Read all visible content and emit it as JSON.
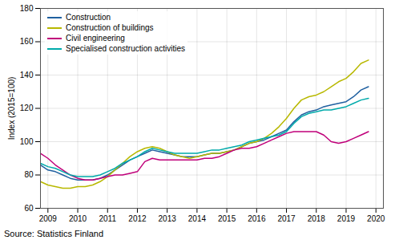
{
  "chart_data": {
    "type": "line",
    "ylabel": "Index (2015=100)",
    "source": "Source: Statistics Finland",
    "xlim": [
      2008.75,
      2020.25
    ],
    "ylim": [
      60,
      180
    ],
    "xticks": [
      2009,
      2010,
      2011,
      2012,
      2013,
      2014,
      2015,
      2016,
      2017,
      2018,
      2019,
      2020
    ],
    "yticks": [
      60,
      80,
      100,
      120,
      140,
      160,
      180
    ],
    "grid": true,
    "legend": "upper left",
    "x": [
      2008.75,
      2009.0,
      2009.25,
      2009.5,
      2009.75,
      2010.0,
      2010.25,
      2010.5,
      2010.75,
      2011.0,
      2011.25,
      2011.5,
      2011.75,
      2012.0,
      2012.25,
      2012.5,
      2012.75,
      2013.0,
      2013.25,
      2013.5,
      2013.75,
      2014.0,
      2014.25,
      2014.5,
      2014.75,
      2015.0,
      2015.25,
      2015.5,
      2015.75,
      2016.0,
      2016.25,
      2016.5,
      2016.75,
      2017.0,
      2017.25,
      2017.5,
      2017.75,
      2018.0,
      2018.25,
      2018.5,
      2018.75,
      2019.0,
      2019.25,
      2019.5,
      2019.75
    ],
    "series": [
      {
        "name": "Construction",
        "color": "#2060A0",
        "values": [
          86,
          83,
          82,
          80,
          78,
          77,
          77,
          77,
          78,
          80,
          83,
          86,
          89,
          91,
          93,
          95,
          94,
          93,
          92,
          91,
          91,
          91,
          92,
          93,
          93,
          94,
          95,
          97,
          99,
          100,
          101,
          103,
          105,
          107,
          112,
          116,
          118,
          119,
          121,
          122,
          123,
          124,
          127,
          131,
          133
        ]
      },
      {
        "name": "Construction of buildings",
        "color": "#B8B800",
        "values": [
          76,
          74,
          73,
          72,
          72,
          73,
          73,
          74,
          76,
          79,
          83,
          87,
          91,
          94,
          96,
          97,
          96,
          94,
          92,
          91,
          90,
          91,
          92,
          93,
          93,
          94,
          95,
          97,
          99,
          100,
          102,
          105,
          109,
          114,
          120,
          125,
          127,
          128,
          130,
          133,
          136,
          138,
          142,
          147,
          149
        ]
      },
      {
        "name": "Civil engineering",
        "color": "#C0007A",
        "values": [
          93,
          90,
          86,
          83,
          80,
          78,
          77,
          77,
          78,
          79,
          80,
          80,
          81,
          82,
          88,
          90,
          89,
          89,
          89,
          89,
          89,
          89,
          90,
          90,
          91,
          93,
          95,
          96,
          96,
          97,
          99,
          101,
          103,
          105,
          106,
          106,
          106,
          106,
          104,
          100,
          99,
          100,
          102,
          104,
          106
        ]
      },
      {
        "name": "Specialised construction activities",
        "color": "#00AAAA",
        "values": [
          87,
          85,
          84,
          82,
          80,
          79,
          79,
          79,
          80,
          82,
          84,
          87,
          89,
          91,
          94,
          96,
          95,
          94,
          93,
          93,
          93,
          93,
          94,
          95,
          95,
          96,
          97,
          98,
          100,
          101,
          102,
          103,
          104,
          106,
          111,
          115,
          117,
          118,
          119,
          119,
          120,
          121,
          123,
          125,
          126
        ]
      }
    ]
  }
}
